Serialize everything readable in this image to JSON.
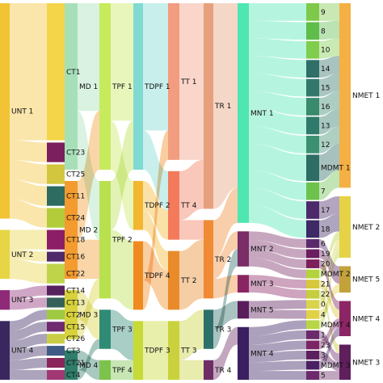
{
  "diagram": {
    "type": "sankey",
    "columns": [
      {
        "id": "UNT",
        "nodes": [
          {
            "label": "UNT 1",
            "color": "#f2c335",
            "rank": 0
          },
          {
            "label": "UNT 2",
            "color": "#e7d545",
            "rank": 1
          },
          {
            "label": "UNT 3",
            "color": "#8e2a78",
            "rank": 2
          },
          {
            "label": "UNT 4",
            "color": "#3a2760",
            "rank": 3
          }
        ]
      },
      {
        "id": "CT",
        "nodes": [
          {
            "label": "CT1",
            "color": "#f4d54a"
          },
          {
            "label": "CT23",
            "color": "#7c1f5e"
          },
          {
            "label": "CT25",
            "color": "#d2c63f"
          },
          {
            "label": "CT11",
            "color": "#2e6b61"
          },
          {
            "label": "CT24",
            "color": "#b3cc3a"
          },
          {
            "label": "CT18",
            "color": "#8b1e66"
          },
          {
            "label": "CT16",
            "color": "#4e2a6b"
          },
          {
            "label": "CT22",
            "color": "#c0d44a"
          },
          {
            "label": "CT14",
            "color": "#56215c"
          },
          {
            "label": "CT13",
            "color": "#34615a"
          },
          {
            "label": "CT2",
            "color": "#9fc941"
          },
          {
            "label": "CT15",
            "color": "#6f2a70"
          },
          {
            "label": "CT26",
            "color": "#c9ce46"
          },
          {
            "label": "CT3",
            "color": "#3f5c86"
          },
          {
            "label": "CT21",
            "color": "#8a2559"
          },
          {
            "label": "CT4",
            "color": "#a13874"
          }
        ]
      },
      {
        "id": "MD",
        "nodes": [
          {
            "label": "MD 1",
            "color": "#a7e0b8"
          },
          {
            "label": "MD 2",
            "color": "#f39b2e"
          },
          {
            "label": "MD 3",
            "color": "#d8d23c"
          },
          {
            "label": "MD 4",
            "color": "#2f7d6a"
          }
        ]
      },
      {
        "id": "TPF",
        "nodes": [
          {
            "label": "TPF 1",
            "color": "#c8ea5d"
          },
          {
            "label": "TPF 2",
            "color": "#b9e14f"
          },
          {
            "label": "TPF 3",
            "color": "#2f8b76"
          },
          {
            "label": "TPF 4",
            "color": "#7dc24c"
          }
        ]
      },
      {
        "id": "TDPF",
        "nodes": [
          {
            "label": "TDPF 1",
            "color": "#7fdad2"
          },
          {
            "label": "TDPF 2",
            "color": "#f2b72e"
          },
          {
            "label": "TDPF 4",
            "color": "#f08a1f"
          },
          {
            "label": "TDPF 3",
            "color": "#c7da36"
          }
        ]
      },
      {
        "id": "TT",
        "nodes": [
          {
            "label": "TT 1",
            "color": "#f29c80"
          },
          {
            "label": "TT 4",
            "color": "#f47a5c"
          },
          {
            "label": "TT 2",
            "color": "#e98b2a"
          },
          {
            "label": "TT 3",
            "color": "#c9d23c"
          }
        ]
      },
      {
        "id": "TR",
        "nodes": [
          {
            "label": "TR 1",
            "color": "#e7a07d"
          },
          {
            "label": "TR 2",
            "color": "#f08a34"
          },
          {
            "label": "TR 3",
            "color": "#2f6f69"
          },
          {
            "label": "TR 4",
            "color": "#6f2d66"
          }
        ]
      },
      {
        "id": "MNT",
        "nodes": [
          {
            "label": "MNT 1",
            "color": "#4fe6b2"
          },
          {
            "label": "MNT 2",
            "color": "#7a2d66"
          },
          {
            "label": "MNT 3",
            "color": "#8a2563"
          },
          {
            "label": "MNT 5",
            "color": "#5a1d5c"
          },
          {
            "label": "MNT 4",
            "color": "#3a2060"
          }
        ]
      },
      {
        "id": "MDMT",
        "nodes": [
          {
            "label": "9",
            "color": "#7fc94a"
          },
          {
            "label": "8",
            "color": "#5fbd4a"
          },
          {
            "label": "10",
            "color": "#7fcd4d"
          },
          {
            "label": "14",
            "color": "#2f6f68"
          },
          {
            "label": "15",
            "color": "#33776b"
          },
          {
            "label": "16",
            "color": "#3a8a6d"
          },
          {
            "label": "13",
            "color": "#2f7a6a"
          },
          {
            "label": "12",
            "color": "#3b9070"
          },
          {
            "label": "MDMT 1",
            "color": "#2e6d64"
          },
          {
            "label": "7",
            "color": "#6cc24c"
          },
          {
            "label": "17",
            "color": "#4c2a6a"
          },
          {
            "label": "18",
            "color": "#3d2a66"
          },
          {
            "label": "6",
            "color": "#5a2a6b"
          },
          {
            "label": "19",
            "color": "#6a1d5f"
          },
          {
            "label": "20",
            "color": "#7d1f5a"
          },
          {
            "label": "MDMT 2",
            "color": "#b3d33d"
          },
          {
            "label": "21",
            "color": "#d6c83a"
          },
          {
            "label": "22",
            "color": "#c6cd3f"
          },
          {
            "label": "0",
            "color": "#d8d44c"
          },
          {
            "label": "4",
            "color": "#e1d146"
          },
          {
            "label": "MDMT 4",
            "color": "#b8d546"
          },
          {
            "label": "1",
            "color": "#6a2a6b"
          },
          {
            "label": "23",
            "color": "#7a2464"
          },
          {
            "label": "3",
            "color": "#5c1f5d"
          },
          {
            "label": "MDMT 3",
            "color": "#4b2062"
          },
          {
            "label": "5",
            "color": "#6c2a6a"
          }
        ]
      },
      {
        "id": "NMET",
        "nodes": [
          {
            "label": "NMET 1",
            "color": "#f4b044"
          },
          {
            "label": "NMET 2",
            "color": "#e6d246"
          },
          {
            "label": "NMET 5",
            "color": "#c3a23c"
          },
          {
            "label": "NMET 4",
            "color": "#8c2565"
          },
          {
            "label": "NMET 3",
            "color": "#5e1f5c"
          }
        ]
      }
    ],
    "links": [
      {
        "from": "UNT 1",
        "to": "CT1",
        "value": 14
      },
      {
        "from": "UNT 1",
        "to": "CT23",
        "value": 2
      },
      {
        "from": "UNT 1",
        "to": "CT25",
        "value": 2
      },
      {
        "from": "UNT 1",
        "to": "CT11",
        "value": 2
      },
      {
        "from": "UNT 1",
        "to": "CT24",
        "value": 2
      },
      {
        "from": "UNT 2",
        "to": "CT18",
        "value": 2
      },
      {
        "from": "UNT 2",
        "to": "CT16",
        "value": 1
      },
      {
        "from": "UNT 2",
        "to": "CT22",
        "value": 2
      },
      {
        "from": "UNT 3",
        "to": "CT14",
        "value": 1
      },
      {
        "from": "UNT 3",
        "to": "CT13",
        "value": 1
      },
      {
        "from": "UNT 4",
        "to": "CT2",
        "value": 1
      },
      {
        "from": "UNT 4",
        "to": "CT15",
        "value": 1
      },
      {
        "from": "UNT 4",
        "to": "CT26",
        "value": 1
      },
      {
        "from": "UNT 4",
        "to": "CT3",
        "value": 1
      },
      {
        "from": "UNT 4",
        "to": "CT21",
        "value": 1
      },
      {
        "from": "UNT 4",
        "to": "CT4",
        "value": 1
      },
      {
        "from": "CT1",
        "to": "MD 1",
        "value": 10
      },
      {
        "from": "CT1",
        "to": "MD 2",
        "value": 4
      },
      {
        "from": "CT23",
        "to": "MD 1",
        "value": 2
      },
      {
        "from": "CT25",
        "to": "MD 2",
        "value": 2
      },
      {
        "from": "CT11",
        "to": "MD 1",
        "value": 2
      },
      {
        "from": "CT24",
        "to": "MD 3",
        "value": 2
      },
      {
        "from": "CT18",
        "to": "MD 2",
        "value": 2
      },
      {
        "from": "CT16",
        "to": "MD 4",
        "value": 1
      },
      {
        "from": "CT22",
        "to": "MD 1",
        "value": 2
      },
      {
        "from": "CT14",
        "to": "MD 3",
        "value": 1
      },
      {
        "from": "CT13",
        "to": "MD 4",
        "value": 1
      },
      {
        "from": "CT2",
        "to": "MD 1",
        "value": 1
      },
      {
        "from": "CT15",
        "to": "MD 2",
        "value": 1
      },
      {
        "from": "CT26",
        "to": "MD 3",
        "value": 1
      },
      {
        "from": "CT3",
        "to": "MD 4",
        "value": 1
      },
      {
        "from": "CT21",
        "to": "MD 2",
        "value": 1
      },
      {
        "from": "CT4",
        "to": "MD 3",
        "value": 1
      },
      {
        "from": "MD 1",
        "to": "TPF 1",
        "value": 11
      },
      {
        "from": "MD 1",
        "to": "TPF 2",
        "value": 6
      },
      {
        "from": "MD 2",
        "to": "TPF 1",
        "value": 6
      },
      {
        "from": "MD 2",
        "to": "TPF 2",
        "value": 4
      },
      {
        "from": "MD 3",
        "to": "TPF 3",
        "value": 3
      },
      {
        "from": "MD 3",
        "to": "TPF 2",
        "value": 2
      },
      {
        "from": "MD 4",
        "to": "TPF 4",
        "value": 2
      },
      {
        "from": "MD 4",
        "to": "TPF 3",
        "value": 1
      },
      {
        "from": "TPF 1",
        "to": "TDPF 1",
        "value": 12
      },
      {
        "from": "TPF 1",
        "to": "TDPF 2",
        "value": 5
      },
      {
        "from": "TPF 2",
        "to": "TDPF 1",
        "value": 5
      },
      {
        "from": "TPF 2",
        "to": "TDPF 4",
        "value": 7
      },
      {
        "from": "TPF 3",
        "to": "TDPF 3",
        "value": 4
      },
      {
        "from": "TPF 4",
        "to": "TDPF 3",
        "value": 2
      },
      {
        "from": "TDPF 1",
        "to": "TT 1",
        "value": 13
      },
      {
        "from": "TDPF 1",
        "to": "TT 4",
        "value": 4
      },
      {
        "from": "TDPF 2",
        "to": "TT 4",
        "value": 3
      },
      {
        "from": "TDPF 2",
        "to": "TT 2",
        "value": 2
      },
      {
        "from": "TDPF 4",
        "to": "TT 2",
        "value": 4
      },
      {
        "from": "TDPF 4",
        "to": "TT 1",
        "value": 3
      },
      {
        "from": "TDPF 3",
        "to": "TT 3",
        "value": 6
      },
      {
        "from": "TT 1",
        "to": "TR 1",
        "value": 16
      },
      {
        "from": "TT 4",
        "to": "TR 1",
        "value": 5
      },
      {
        "from": "TT 4",
        "to": "TR 2",
        "value": 2
      },
      {
        "from": "TT 2",
        "to": "TR 2",
        "value": 6
      },
      {
        "from": "TT 3",
        "to": "TR 3",
        "value": 4
      },
      {
        "from": "TT 3",
        "to": "TR 4",
        "value": 2
      },
      {
        "from": "TR 1",
        "to": "MNT 1",
        "value": 21
      },
      {
        "from": "TR 2",
        "to": "MNT 1",
        "value": 4
      },
      {
        "from": "TR 2",
        "to": "MNT 2",
        "value": 2
      },
      {
        "from": "TR 2",
        "to": "MNT 3",
        "value": 2
      },
      {
        "from": "TR 3",
        "to": "MNT 5",
        "value": 2
      },
      {
        "from": "TR 3",
        "to": "MNT 2",
        "value": 2
      },
      {
        "from": "TR 4",
        "to": "MNT 4",
        "value": 2
      },
      {
        "from": "MNT 1",
        "to": "9",
        "value": 2
      },
      {
        "from": "MNT 1",
        "to": "8",
        "value": 2
      },
      {
        "from": "MNT 1",
        "to": "10",
        "value": 2
      },
      {
        "from": "MNT 1",
        "to": "14",
        "value": 2
      },
      {
        "from": "MNT 1",
        "to": "15",
        "value": 2
      },
      {
        "from": "MNT 1",
        "to": "16",
        "value": 2
      },
      {
        "from": "MNT 1",
        "to": "13",
        "value": 2
      },
      {
        "from": "MNT 1",
        "to": "12",
        "value": 2
      },
      {
        "from": "MNT 1",
        "to": "MDMT 1",
        "value": 3
      },
      {
        "from": "MNT 1",
        "to": "7",
        "value": 2
      },
      {
        "from": "MNT 1",
        "to": "17",
        "value": 2
      },
      {
        "from": "MNT 1",
        "to": "18",
        "value": 2
      },
      {
        "from": "MNT 2",
        "to": "6",
        "value": 1
      },
      {
        "from": "MNT 2",
        "to": "19",
        "value": 1
      },
      {
        "from": "MNT 2",
        "to": "20",
        "value": 1
      },
      {
        "from": "MNT 2",
        "to": "MDMT 2",
        "value": 1
      },
      {
        "from": "MNT 3",
        "to": "21",
        "value": 1
      },
      {
        "from": "MNT 3",
        "to": "22",
        "value": 1
      },
      {
        "from": "MNT 5",
        "to": "0",
        "value": 1
      },
      {
        "from": "MNT 5",
        "to": "4",
        "value": 1
      },
      {
        "from": "MNT 4",
        "to": "MDMT 4",
        "value": 1
      },
      {
        "from": "MNT 4",
        "to": "1",
        "value": 1
      },
      {
        "from": "MNT 4",
        "to": "23",
        "value": 1
      },
      {
        "from": "MNT 4",
        "to": "3",
        "value": 1
      },
      {
        "from": "MNT 4",
        "to": "MDMT 3",
        "value": 1
      },
      {
        "from": "MNT 4",
        "to": "5",
        "value": 1
      },
      {
        "from": "9",
        "to": "NMET 1",
        "value": 2
      },
      {
        "from": "8",
        "to": "NMET 1",
        "value": 2
      },
      {
        "from": "10",
        "to": "NMET 1",
        "value": 2
      },
      {
        "from": "14",
        "to": "NMET 1",
        "value": 2
      },
      {
        "from": "15",
        "to": "NMET 1",
        "value": 2
      },
      {
        "from": "16",
        "to": "NMET 1",
        "value": 2
      },
      {
        "from": "13",
        "to": "NMET 1",
        "value": 2
      },
      {
        "from": "12",
        "to": "NMET 1",
        "value": 2
      },
      {
        "from": "MDMT 1",
        "to": "NMET 1",
        "value": 3
      },
      {
        "from": "7",
        "to": "NMET 1",
        "value": 2
      },
      {
        "from": "17",
        "to": "NMET 2",
        "value": 2
      },
      {
        "from": "18",
        "to": "NMET 2",
        "value": 2
      },
      {
        "from": "6",
        "to": "NMET 5",
        "value": 1
      },
      {
        "from": "19",
        "to": "NMET 5",
        "value": 1
      },
      {
        "from": "20",
        "to": "NMET 4",
        "value": 1
      },
      {
        "from": "MDMT 2",
        "to": "NMET 2",
        "value": 1
      },
      {
        "from": "21",
        "to": "NMET 4",
        "value": 1
      },
      {
        "from": "22",
        "to": "NMET 3",
        "value": 1
      },
      {
        "from": "0",
        "to": "NMET 2",
        "value": 1
      },
      {
        "from": "4",
        "to": "NMET 5",
        "value": 1
      },
      {
        "from": "MDMT 4",
        "to": "NMET 2",
        "value": 1
      },
      {
        "from": "1",
        "to": "NMET 3",
        "value": 1
      },
      {
        "from": "23",
        "to": "NMET 4",
        "value": 1
      },
      {
        "from": "3",
        "to": "NMET 3",
        "value": 1
      },
      {
        "from": "MDMT 3",
        "to": "NMET 4",
        "value": 1
      },
      {
        "from": "5",
        "to": "NMET 3",
        "value": 1
      }
    ]
  }
}
